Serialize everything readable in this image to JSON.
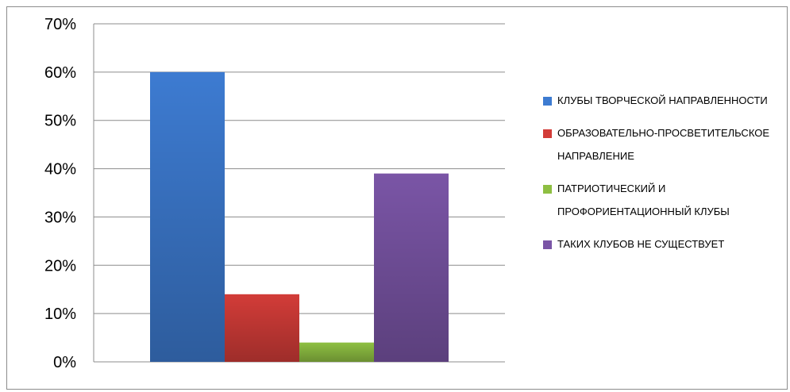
{
  "chart_data": {
    "type": "bar",
    "categories": [
      ""
    ],
    "series": [
      {
        "name": "КЛУБЫ ТВОРЧЕСКОЙ НАПРАВЛЕННОСТИ",
        "values": [
          0.6
        ],
        "color": "#3d7bd1"
      },
      {
        "name": "ОБРАЗОВАТЕЛЬНО-ПРОСВЕТИТЕЛЬСКОЕ НАПРАВЛЕНИЕ",
        "values": [
          0.14
        ],
        "color": "#d23c38"
      },
      {
        "name": "ПАТРИОТИЧЕСКИЙ И ПРОФОРИЕНТАЦИОННЫЙ КЛУБЫ",
        "values": [
          0.04
        ],
        "color": "#8ebf42"
      },
      {
        "name": "ТАКИХ КЛУБОВ НЕ СУЩЕСТВУЕТ",
        "values": [
          0.39
        ],
        "color": "#7a55a6"
      }
    ],
    "ylim": [
      0,
      0.7
    ],
    "yticks": [
      "0%",
      "10%",
      "20%",
      "30%",
      "40%",
      "50%",
      "60%",
      "70%"
    ],
    "grid": true,
    "legend": "right"
  }
}
